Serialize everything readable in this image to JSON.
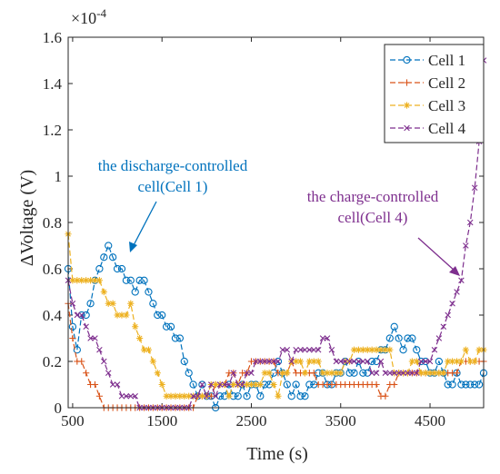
{
  "chart_data": {
    "type": "line",
    "title": "",
    "xlabel": "Time (s)",
    "ylabel": "ΔVoltage (V)",
    "y_exponent_label": "×10",
    "y_exponent_power": "-4",
    "xlim": [
      450,
      5100
    ],
    "ylim": [
      0,
      1.6
    ],
    "x_ticks": [
      500,
      1500,
      2500,
      3500,
      4500
    ],
    "y_ticks": [
      0,
      0.2,
      0.4,
      0.6,
      0.8,
      1,
      1.2,
      1.4,
      1.6
    ],
    "grid": false,
    "legend_position": "top-right",
    "series": [
      {
        "name": "Cell 1",
        "color": "#0072BD",
        "marker": "circle",
        "dash": "6,3",
        "x": [
          450,
          500,
          550,
          600,
          650,
          700,
          750,
          800,
          850,
          900,
          950,
          1000,
          1050,
          1100,
          1150,
          1200,
          1250,
          1300,
          1350,
          1400,
          1450,
          1500,
          1550,
          1600,
          1650,
          1700,
          1750,
          1800,
          1850,
          1900,
          1950,
          2000,
          2050,
          2100,
          2150,
          2200,
          2250,
          2300,
          2350,
          2400,
          2450,
          2500,
          2550,
          2600,
          2650,
          2700,
          2750,
          2800,
          2850,
          2900,
          2950,
          3000,
          3050,
          3100,
          3150,
          3200,
          3250,
          3300,
          3350,
          3400,
          3450,
          3500,
          3550,
          3600,
          3650,
          3700,
          3750,
          3800,
          3850,
          3900,
          3950,
          4000,
          4050,
          4100,
          4150,
          4200,
          4250,
          4300,
          4350,
          4400,
          4450,
          4500,
          4550,
          4600,
          4650,
          4700,
          4750,
          4800,
          4850,
          4900,
          4950,
          5000,
          5050,
          5100
        ],
        "y": [
          0.6,
          0.35,
          0.25,
          0.4,
          0.4,
          0.45,
          0.55,
          0.6,
          0.65,
          0.7,
          0.65,
          0.6,
          0.6,
          0.55,
          0.55,
          0.5,
          0.55,
          0.55,
          0.5,
          0.45,
          0.4,
          0.4,
          0.35,
          0.35,
          0.3,
          0.3,
          0.2,
          0.15,
          0.1,
          0.05,
          0.1,
          0.05,
          0.05,
          0.0,
          0.05,
          0.05,
          0.1,
          0.05,
          0.05,
          0.1,
          0.05,
          0.1,
          0.1,
          0.05,
          0.1,
          0.1,
          0.15,
          0.2,
          0.15,
          0.1,
          0.05,
          0.1,
          0.05,
          0.05,
          0.1,
          0.1,
          0.15,
          0.15,
          0.1,
          0.1,
          0.15,
          0.15,
          0.2,
          0.15,
          0.15,
          0.2,
          0.15,
          0.15,
          0.2,
          0.2,
          0.25,
          0.25,
          0.3,
          0.35,
          0.3,
          0.25,
          0.3,
          0.3,
          0.25,
          0.2,
          0.2,
          0.15,
          0.15,
          0.2,
          0.15,
          0.1,
          0.1,
          0.15,
          0.1,
          0.1,
          0.1,
          0.1,
          0.1,
          0.15
        ]
      },
      {
        "name": "Cell 2",
        "color": "#D95319",
        "marker": "plus",
        "dash": "6,3",
        "x": [
          450,
          500,
          550,
          600,
          650,
          700,
          750,
          800,
          850,
          900,
          950,
          1000,
          1050,
          1100,
          1150,
          1200,
          1250,
          1300,
          1350,
          1400,
          1450,
          1500,
          1550,
          1600,
          1650,
          1700,
          1750,
          1800,
          1850,
          1900,
          1950,
          2000,
          2050,
          2100,
          2150,
          2200,
          2250,
          2300,
          2350,
          2400,
          2450,
          2500,
          2550,
          2600,
          2650,
          2700,
          2750,
          2800,
          2850,
          2900,
          2950,
          3000,
          3050,
          3100,
          3150,
          3200,
          3250,
          3300,
          3350,
          3400,
          3450,
          3500,
          3550,
          3600,
          3650,
          3700,
          3750,
          3800,
          3850,
          3900,
          3950,
          4000,
          4050,
          4100,
          4150,
          4200,
          4250,
          4300,
          4350,
          4400,
          4450,
          4500,
          4550,
          4600,
          4650,
          4700,
          4750,
          4800,
          4850,
          4900,
          4950,
          5000,
          5050,
          5100
        ],
        "y": [
          0.45,
          0.3,
          0.2,
          0.2,
          0.15,
          0.1,
          0.1,
          0.05,
          0.0,
          0.0,
          0.0,
          0.0,
          0.0,
          0.0,
          0.0,
          0.0,
          0.0,
          0.0,
          0.0,
          0.0,
          0.0,
          0.0,
          0.0,
          0.0,
          0.0,
          0.0,
          0.0,
          0.0,
          0.0,
          0.05,
          0.05,
          0.05,
          0.05,
          0.1,
          0.1,
          0.1,
          0.15,
          0.15,
          0.1,
          0.15,
          0.15,
          0.2,
          0.2,
          0.2,
          0.2,
          0.2,
          0.2,
          0.15,
          0.15,
          0.15,
          0.2,
          0.15,
          0.15,
          0.15,
          0.15,
          0.15,
          0.1,
          0.1,
          0.1,
          0.1,
          0.1,
          0.1,
          0.1,
          0.1,
          0.1,
          0.1,
          0.1,
          0.1,
          0.1,
          0.1,
          0.05,
          0.05,
          0.1,
          0.1,
          0.15,
          0.15,
          0.15,
          0.15,
          0.15,
          0.15,
          0.15,
          0.15,
          0.15,
          0.15,
          0.15,
          0.15,
          0.15,
          0.15,
          0.2,
          0.2,
          0.2,
          0.2,
          0.2,
          0.2
        ]
      },
      {
        "name": "Cell 3",
        "color": "#EDB120",
        "marker": "asterisk",
        "dash": "6,3",
        "x": [
          450,
          500,
          550,
          600,
          650,
          700,
          750,
          800,
          850,
          900,
          950,
          1000,
          1050,
          1100,
          1150,
          1200,
          1250,
          1300,
          1350,
          1400,
          1450,
          1500,
          1550,
          1600,
          1650,
          1700,
          1750,
          1800,
          1850,
          1900,
          1950,
          2000,
          2050,
          2100,
          2150,
          2200,
          2250,
          2300,
          2350,
          2400,
          2450,
          2500,
          2550,
          2600,
          2650,
          2700,
          2750,
          2800,
          2850,
          2900,
          2950,
          3000,
          3050,
          3100,
          3150,
          3200,
          3250,
          3300,
          3350,
          3400,
          3450,
          3500,
          3550,
          3600,
          3650,
          3700,
          3750,
          3800,
          3850,
          3900,
          3950,
          4000,
          4050,
          4100,
          4150,
          4200,
          4250,
          4300,
          4350,
          4400,
          4450,
          4500,
          4550,
          4600,
          4650,
          4700,
          4750,
          4800,
          4850,
          4900,
          4950,
          5000,
          5050,
          5100
        ],
        "y": [
          0.75,
          0.55,
          0.55,
          0.55,
          0.55,
          0.55,
          0.55,
          0.55,
          0.5,
          0.45,
          0.45,
          0.4,
          0.4,
          0.4,
          0.45,
          0.35,
          0.3,
          0.25,
          0.25,
          0.2,
          0.15,
          0.1,
          0.05,
          0.05,
          0.05,
          0.05,
          0.05,
          0.05,
          0.05,
          0.05,
          0.05,
          0.05,
          0.1,
          0.1,
          0.1,
          0.1,
          0.05,
          0.1,
          0.1,
          0.1,
          0.1,
          0.1,
          0.1,
          0.1,
          0.15,
          0.15,
          0.1,
          0.05,
          0.15,
          0.15,
          0.2,
          0.2,
          0.2,
          0.15,
          0.2,
          0.2,
          0.2,
          0.15,
          0.15,
          0.15,
          0.15,
          0.15,
          0.2,
          0.2,
          0.25,
          0.25,
          0.25,
          0.25,
          0.25,
          0.25,
          0.25,
          0.25,
          0.25,
          0.15,
          0.15,
          0.15,
          0.15,
          0.2,
          0.2,
          0.15,
          0.15,
          0.15,
          0.15,
          0.15,
          0.15,
          0.2,
          0.2,
          0.2,
          0.2,
          0.25,
          0.2,
          0.2,
          0.25,
          0.25
        ]
      },
      {
        "name": "Cell 4",
        "color": "#7E2F8E",
        "marker": "x",
        "dash": "6,3",
        "x": [
          450,
          500,
          550,
          600,
          650,
          700,
          750,
          800,
          850,
          900,
          950,
          1000,
          1050,
          1100,
          1150,
          1200,
          1250,
          1300,
          1350,
          1400,
          1450,
          1500,
          1550,
          1600,
          1650,
          1700,
          1750,
          1800,
          1850,
          1900,
          1950,
          2000,
          2050,
          2100,
          2150,
          2200,
          2250,
          2300,
          2350,
          2400,
          2450,
          2500,
          2550,
          2600,
          2650,
          2700,
          2750,
          2800,
          2850,
          2900,
          2950,
          3000,
          3050,
          3100,
          3150,
          3200,
          3250,
          3300,
          3350,
          3400,
          3450,
          3500,
          3550,
          3600,
          3650,
          3700,
          3750,
          3800,
          3850,
          3900,
          3950,
          4000,
          4050,
          4100,
          4150,
          4200,
          4250,
          4300,
          4350,
          4400,
          4450,
          4500,
          4550,
          4600,
          4650,
          4700,
          4750,
          4800,
          4850,
          4900,
          4950,
          5000,
          5050,
          5100
        ],
        "y": [
          0.55,
          0.45,
          0.4,
          0.4,
          0.35,
          0.3,
          0.3,
          0.25,
          0.2,
          0.15,
          0.1,
          0.1,
          0.05,
          0.05,
          0.05,
          0.05,
          0.0,
          0.0,
          0.0,
          0.0,
          0.0,
          0.0,
          0.0,
          0.0,
          0.0,
          0.0,
          0.0,
          0.0,
          0.05,
          0.05,
          0.1,
          0.05,
          0.1,
          0.05,
          0.1,
          0.1,
          0.1,
          0.15,
          0.1,
          0.1,
          0.15,
          0.15,
          0.2,
          0.2,
          0.2,
          0.2,
          0.2,
          0.2,
          0.25,
          0.25,
          0.2,
          0.25,
          0.25,
          0.25,
          0.25,
          0.25,
          0.25,
          0.3,
          0.3,
          0.25,
          0.2,
          0.2,
          0.2,
          0.2,
          0.2,
          0.2,
          0.2,
          0.2,
          0.15,
          0.15,
          0.2,
          0.15,
          0.15,
          0.15,
          0.15,
          0.15,
          0.15,
          0.15,
          0.15,
          0.2,
          0.2,
          0.2,
          0.25,
          0.3,
          0.35,
          0.4,
          0.45,
          0.5,
          0.55,
          0.7,
          0.8,
          0.95,
          1.15,
          1.5
        ]
      }
    ],
    "annotations": [
      {
        "id": "ann1",
        "lines": [
          "the discharge-controlled",
          "cell(Cell 1)"
        ],
        "color": "#0072BD"
      },
      {
        "id": "ann2",
        "lines": [
          "the charge-controlled",
          "cell(Cell 4)"
        ],
        "color": "#7E2F8E"
      }
    ]
  }
}
